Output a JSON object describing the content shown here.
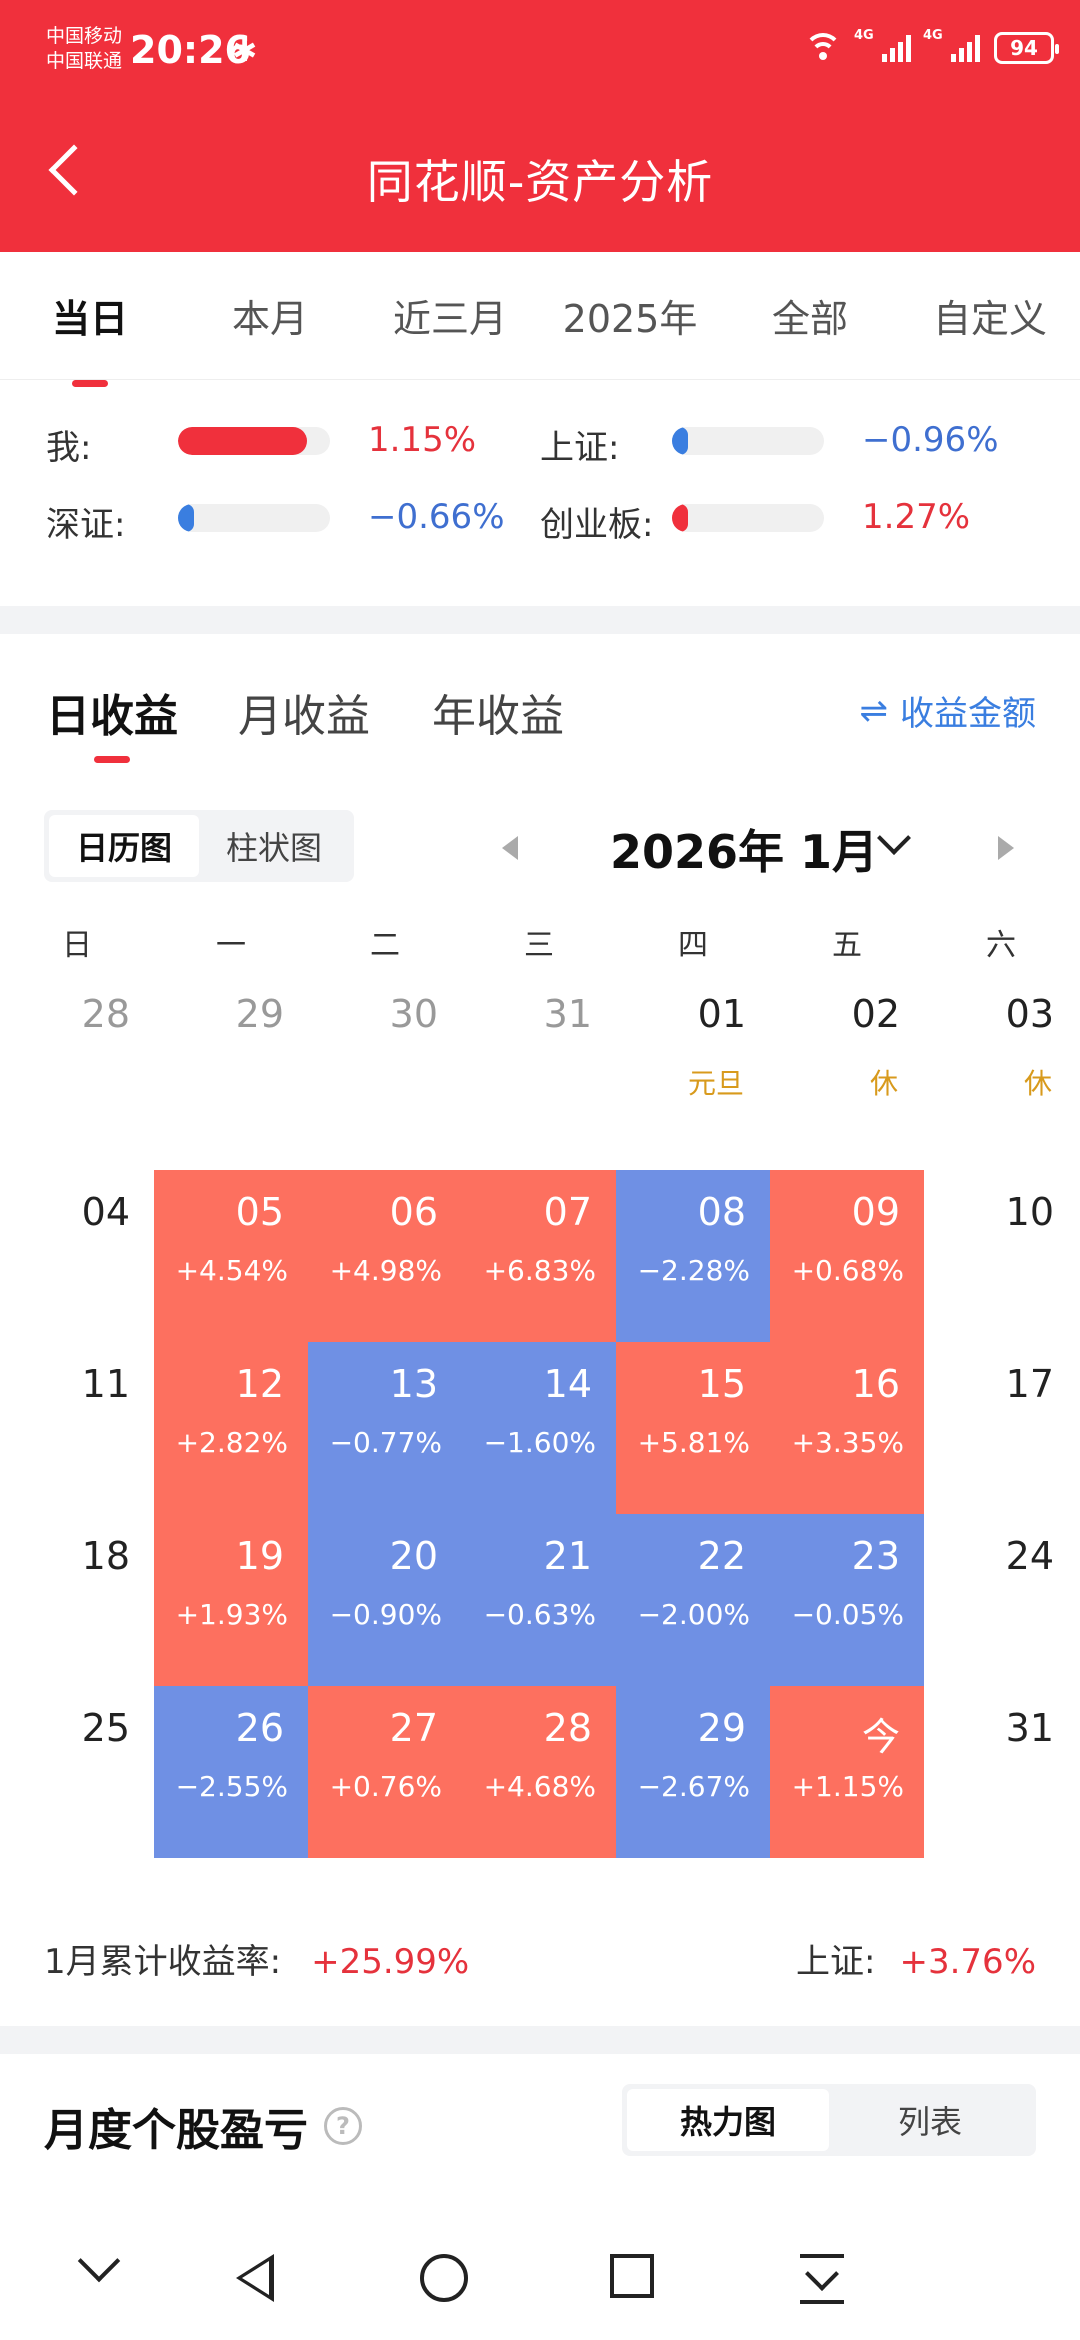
{
  "status": {
    "carrier1": "中国移动",
    "carrier2": "中国联通",
    "time": "20:26",
    "bluetooth": "✱",
    "net1": "4G",
    "net2": "4G",
    "battery": "94"
  },
  "header": {
    "title": "同花顺-资产分析",
    "back_icon": "back-arrow"
  },
  "range_tabs": [
    "当日",
    "本月",
    "近三月",
    "2025年",
    "全部",
    "自定义"
  ],
  "range_active": 0,
  "compare": {
    "me": {
      "label": "我:",
      "value": "1.15%",
      "level": 0.85,
      "color": "#f0303c"
    },
    "sh": {
      "label": "上证:",
      "value": "−0.96%",
      "level": 0.1,
      "color": "#3a7ee0"
    },
    "sz": {
      "label": "深证:",
      "value": "−0.66%",
      "level": 0.1,
      "color": "#3a7ee0"
    },
    "cyb": {
      "label": "创业板:",
      "value": "1.27%",
      "level": 0.1,
      "color": "#f0303c"
    }
  },
  "earn_tabs": [
    "日收益",
    "月收益",
    "年收益"
  ],
  "amount_link": "收益金额",
  "view_toggle": [
    "日历图",
    "柱状图"
  ],
  "month": "2026年 1月",
  "weekdays": [
    "日",
    "一",
    "二",
    "三",
    "四",
    "五",
    "六"
  ],
  "calendar": [
    [
      {
        "d": "28",
        "outside": true
      },
      {
        "d": "29",
        "outside": true
      },
      {
        "d": "30",
        "outside": true
      },
      {
        "d": "31",
        "outside": true
      },
      {
        "d": "01",
        "hol": "元旦"
      },
      {
        "d": "02",
        "hol": "休"
      },
      {
        "d": "03",
        "hol": "休"
      }
    ],
    [
      {
        "d": "04"
      },
      {
        "d": "05",
        "v": "+4.54%",
        "s": "up"
      },
      {
        "d": "06",
        "v": "+4.98%",
        "s": "up"
      },
      {
        "d": "07",
        "v": "+6.83%",
        "s": "up"
      },
      {
        "d": "08",
        "v": "−2.28%",
        "s": "down"
      },
      {
        "d": "09",
        "v": "+0.68%",
        "s": "up"
      },
      {
        "d": "10"
      }
    ],
    [
      {
        "d": "11"
      },
      {
        "d": "12",
        "v": "+2.82%",
        "s": "up"
      },
      {
        "d": "13",
        "v": "−0.77%",
        "s": "down"
      },
      {
        "d": "14",
        "v": "−1.60%",
        "s": "down"
      },
      {
        "d": "15",
        "v": "+5.81%",
        "s": "up"
      },
      {
        "d": "16",
        "v": "+3.35%",
        "s": "up"
      },
      {
        "d": "17"
      }
    ],
    [
      {
        "d": "18"
      },
      {
        "d": "19",
        "v": "+1.93%",
        "s": "up"
      },
      {
        "d": "20",
        "v": "−0.90%",
        "s": "down"
      },
      {
        "d": "21",
        "v": "−0.63%",
        "s": "down"
      },
      {
        "d": "22",
        "v": "−2.00%",
        "s": "down"
      },
      {
        "d": "23",
        "v": "−0.05%",
        "s": "down"
      },
      {
        "d": "24"
      }
    ],
    [
      {
        "d": "25"
      },
      {
        "d": "26",
        "v": "−2.55%",
        "s": "down"
      },
      {
        "d": "27",
        "v": "+0.76%",
        "s": "up"
      },
      {
        "d": "28",
        "v": "+4.68%",
        "s": "up"
      },
      {
        "d": "29",
        "v": "−2.67%",
        "s": "down"
      },
      {
        "d": "今",
        "v": "+1.15%",
        "s": "up"
      },
      {
        "d": "31"
      }
    ]
  ],
  "summary": {
    "cum_label": "1月累计收益率:",
    "cum_value": "+25.99%",
    "index_label": "上证:",
    "index_value": "+3.76%"
  },
  "stocks": {
    "title": "月度个股盈亏",
    "help": "?",
    "toggle": [
      "热力图",
      "列表"
    ]
  },
  "colors": {
    "accent": "#f0303c",
    "up_cell": "#fd705f",
    "down_cell": "#6f90e4",
    "holiday": "#d89a1c",
    "link": "#3a7ee0"
  }
}
